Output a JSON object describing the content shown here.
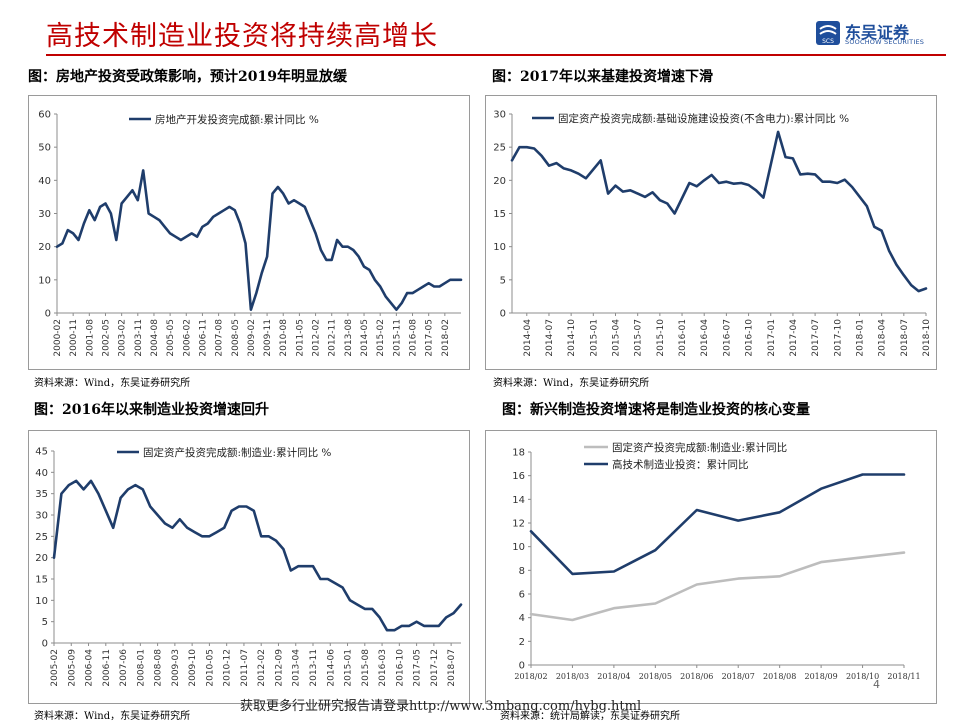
{
  "header": {
    "title": "高技术制造业投资将持续高增长"
  },
  "logo": {
    "name": "东吴证券",
    "mark_text": "SCS",
    "sub": "SOOCHOW SECURITIES",
    "color": "#1f4e9b"
  },
  "colors": {
    "title": "#c00000",
    "line_dark": "#1f3d6b",
    "line_light": "#bdbdbd"
  },
  "panels": [
    {
      "title": "图：房地产投资受政策影响，预计2019年明显放缓",
      "source": "资料来源：Wind，东吴证券研究所"
    },
    {
      "title": "图：2017年以来基建投资增速下滑",
      "source": "资料来源：Wind，东吴证券研究所"
    },
    {
      "title": "图：2016年以来制造业投资增速回升",
      "source": "资料来源：Wind，东吴证券研究所"
    },
    {
      "title": "图：新兴制造投资增速将是制造业投资的核心变量",
      "source": "资料来源：统计局解读，东吴证券研究所"
    }
  ],
  "footer": {
    "text": "获取更多行业研究报告请登录http://www.3mbang.com/hybg.html",
    "page": "4"
  },
  "chart_data": [
    {
      "type": "line",
      "title": "",
      "ylim": [
        0,
        60
      ],
      "yticks": [
        0,
        10,
        20,
        30,
        40,
        50,
        60
      ],
      "xticks": [
        "2000-02",
        "2000-11",
        "2001-08",
        "2002-05",
        "2003-02",
        "2003-11",
        "2004-08",
        "2005-05",
        "2006-02",
        "2006-11",
        "2007-08",
        "2008-05",
        "2009-02",
        "2009-11",
        "2010-08",
        "2011-05",
        "2012-02",
        "2012-11",
        "2013-08",
        "2014-05",
        "2015-02",
        "2015-11",
        "2016-08",
        "2017-05",
        "2018-02"
      ],
      "legend": "top-left",
      "series": [
        {
          "name": "房地产开发投资完成额:累计同比 %",
          "x": [
            "2000-02",
            "2000-05",
            "2000-08",
            "2000-11",
            "2001-02",
            "2001-05",
            "2001-08",
            "2001-11",
            "2002-02",
            "2002-05",
            "2002-08",
            "2002-11",
            "2003-02",
            "2003-05",
            "2003-08",
            "2003-11",
            "2004-02",
            "2004-05",
            "2004-08",
            "2004-11",
            "2005-02",
            "2005-05",
            "2005-08",
            "2005-11",
            "2006-02",
            "2006-05",
            "2006-08",
            "2006-11",
            "2007-02",
            "2007-05",
            "2007-08",
            "2007-11",
            "2008-02",
            "2008-05",
            "2008-08",
            "2008-11",
            "2009-02",
            "2009-05",
            "2009-08",
            "2009-11",
            "2010-02",
            "2010-05",
            "2010-08",
            "2010-11",
            "2011-02",
            "2011-05",
            "2011-08",
            "2011-11",
            "2012-02",
            "2012-05",
            "2012-08",
            "2012-11",
            "2013-02",
            "2013-05",
            "2013-08",
            "2013-11",
            "2014-02",
            "2014-05",
            "2014-08",
            "2014-11",
            "2015-02",
            "2015-05",
            "2015-08",
            "2015-11",
            "2016-02",
            "2016-05",
            "2016-08",
            "2016-11",
            "2017-02",
            "2017-05",
            "2017-08",
            "2017-11",
            "2018-02",
            "2018-05",
            "2018-08",
            "2018-11"
          ],
          "y": [
            20,
            21,
            25,
            24,
            22,
            27,
            31,
            28,
            32,
            33,
            30,
            22,
            33,
            35,
            37,
            34,
            43,
            30,
            29,
            28,
            26,
            24,
            23,
            22,
            23,
            24,
            23,
            26,
            27,
            29,
            30,
            31,
            32,
            31,
            27,
            21,
            1,
            6,
            12,
            17,
            36,
            38,
            36,
            33,
            34,
            33,
            32,
            28,
            24,
            19,
            16,
            16,
            22,
            20,
            20,
            19,
            17,
            14,
            13,
            10,
            8,
            5,
            3,
            1,
            3,
            6,
            6,
            7,
            8,
            9,
            8,
            8,
            9,
            10,
            10,
            10
          ]
        }
      ]
    },
    {
      "type": "line",
      "title": "",
      "ylim": [
        0,
        30
      ],
      "yticks": [
        0,
        5,
        10,
        15,
        20,
        25,
        30
      ],
      "xticks": [
        "2014-04",
        "2014-07",
        "2014-10",
        "2015-01",
        "2015-04",
        "2015-07",
        "2015-10",
        "2016-01",
        "2016-04",
        "2016-07",
        "2016-10",
        "2017-01",
        "2017-04",
        "2017-07",
        "2017-10",
        "2018-01",
        "2018-04",
        "2018-07",
        "2018-10"
      ],
      "legend": "top-left",
      "series": [
        {
          "name": "固定资产投资完成额:基础设施建设投资(不含电力):累计同比 %",
          "x": [
            "2014-02",
            "2014-03",
            "2014-04",
            "2014-05",
            "2014-06",
            "2014-07",
            "2014-08",
            "2014-09",
            "2014-10",
            "2014-11",
            "2014-12",
            "2015-02",
            "2015-03",
            "2015-04",
            "2015-05",
            "2015-06",
            "2015-07",
            "2015-08",
            "2015-09",
            "2015-10",
            "2015-11",
            "2015-12",
            "2016-02",
            "2016-03",
            "2016-04",
            "2016-05",
            "2016-06",
            "2016-07",
            "2016-08",
            "2016-09",
            "2016-10",
            "2016-11",
            "2016-12",
            "2017-02",
            "2017-03",
            "2017-04",
            "2017-05",
            "2017-06",
            "2017-07",
            "2017-08",
            "2017-09",
            "2017-10",
            "2017-11",
            "2017-12",
            "2018-02",
            "2018-03",
            "2018-04",
            "2018-05",
            "2018-06",
            "2018-07",
            "2018-08",
            "2018-09",
            "2018-10"
          ],
          "y": [
            23,
            25,
            25,
            24.8,
            23.7,
            22.2,
            22.6,
            21.8,
            21.5,
            21.0,
            20.3,
            23.0,
            18.0,
            19.2,
            18.3,
            18.5,
            18.0,
            17.5,
            18.2,
            17.0,
            16.5,
            15.0,
            19.6,
            19.1,
            20.0,
            20.8,
            19.6,
            19.8,
            19.5,
            19.6,
            19.3,
            18.5,
            17.4,
            27.3,
            23.5,
            23.3,
            20.9,
            21.0,
            20.9,
            19.8,
            19.8,
            19.6,
            20.1,
            19.0,
            16.1,
            13.0,
            12.4,
            9.4,
            7.3,
            5.7,
            4.2,
            3.3,
            3.7
          ]
        }
      ]
    },
    {
      "type": "line",
      "title": "",
      "ylim": [
        0,
        45
      ],
      "yticks": [
        0,
        5,
        10,
        15,
        20,
        25,
        30,
        35,
        40,
        45
      ],
      "xticks": [
        "2005-02",
        "2005-09",
        "2006-04",
        "2006-11",
        "2007-06",
        "2008-01",
        "2008-08",
        "2009-03",
        "2009-10",
        "2010-05",
        "2010-12",
        "2011-07",
        "2012-02",
        "2012-09",
        "2013-04",
        "2013-11",
        "2014-06",
        "2015-01",
        "2015-08",
        "2016-03",
        "2016-10",
        "2017-05",
        "2017-12",
        "2018-07"
      ],
      "legend": "top-left",
      "series": [
        {
          "name": "固定资产投资完成额:制造业:累计同比 %",
          "x": [
            "2005-02",
            "2005-05",
            "2005-08",
            "2005-11",
            "2006-02",
            "2006-05",
            "2006-08",
            "2006-11",
            "2007-02",
            "2007-05",
            "2007-08",
            "2007-11",
            "2008-02",
            "2008-05",
            "2008-08",
            "2008-11",
            "2009-02",
            "2009-05",
            "2009-08",
            "2009-11",
            "2010-02",
            "2010-05",
            "2010-08",
            "2010-11",
            "2011-02",
            "2011-05",
            "2011-08",
            "2011-11",
            "2012-02",
            "2012-05",
            "2012-08",
            "2012-11",
            "2013-02",
            "2013-05",
            "2013-08",
            "2013-11",
            "2014-02",
            "2014-05",
            "2014-08",
            "2014-11",
            "2015-02",
            "2015-05",
            "2015-08",
            "2015-11",
            "2016-02",
            "2016-05",
            "2016-08",
            "2016-11",
            "2017-02",
            "2017-05",
            "2017-08",
            "2017-11",
            "2018-02",
            "2018-05",
            "2018-08",
            "2018-11"
          ],
          "y": [
            20,
            35,
            37,
            38,
            36,
            38,
            35,
            31,
            27,
            34,
            36,
            37,
            36,
            32,
            30,
            28,
            27,
            29,
            27,
            26,
            25,
            25,
            26,
            27,
            31,
            32,
            32,
            31,
            25,
            25,
            24,
            22,
            17,
            18,
            18,
            18,
            15,
            15,
            14,
            13,
            10,
            9,
            8,
            8,
            6,
            3,
            3,
            4,
            4,
            5,
            4,
            4,
            4,
            6,
            7,
            9
          ]
        }
      ]
    },
    {
      "type": "line",
      "title": "",
      "ylim": [
        0,
        18
      ],
      "yticks": [
        0,
        2,
        4,
        6,
        8,
        10,
        12,
        14,
        16,
        18
      ],
      "categories": [
        "2018/02",
        "2018/03",
        "2018/04",
        "2018/05",
        "2018/06",
        "2018/07",
        "2018/08",
        "2018/09",
        "2018/10",
        "2018/11"
      ],
      "legend": "top-left",
      "series": [
        {
          "name": "固定资产投资完成额:制造业:累计同比",
          "color": "#bdbdbd",
          "values": [
            4.3,
            3.8,
            4.8,
            5.2,
            6.8,
            7.3,
            7.5,
            8.7,
            9.1,
            9.5
          ]
        },
        {
          "name": "高技术制造业投资：累计同比",
          "color": "#1f3d6b",
          "values": [
            11.3,
            7.7,
            7.9,
            9.7,
            13.1,
            12.2,
            12.9,
            14.9,
            16.1,
            16.1
          ]
        }
      ]
    }
  ]
}
